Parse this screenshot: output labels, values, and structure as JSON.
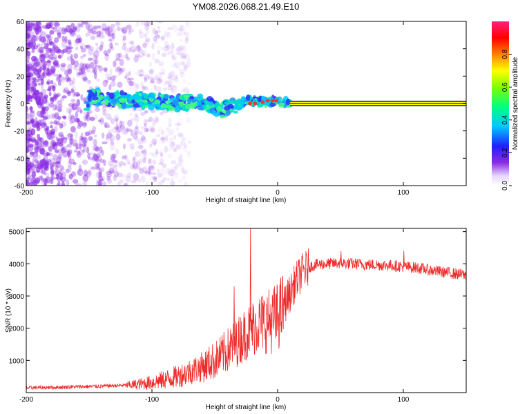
{
  "figure_title": "YM08.2026.068.21.49.E10",
  "colors": {
    "snr_line": "#ee2c2c",
    "spectrogram_noise": "#8a2be2",
    "frame": "#000000"
  },
  "chart_data": [
    {
      "type": "heatmap",
      "title": "",
      "xlabel": "Height of straight line (km)",
      "ylabel": "Frequency (Hz)",
      "xlim": [
        -200,
        150
      ],
      "ylim": [
        -60,
        60
      ],
      "xticks": [
        -200,
        -100,
        0,
        100
      ],
      "yticks": [
        -60,
        -40,
        -20,
        0,
        20,
        40,
        60
      ],
      "colorbar": {
        "label": "Normalized spectral amplitude",
        "range": [
          0,
          1
        ],
        "ticks": [
          "0.0",
          "0.2",
          "0.4",
          "0.6",
          "0.8"
        ],
        "colormap": "rainbow (violet-blue-cyan-green-yellow-red-magenta)"
      },
      "features": [
        {
          "name": "broadband noise",
          "x_range": [
            -200,
            -100
          ],
          "y_range": [
            -60,
            60
          ],
          "amplitude": 0.05
        },
        {
          "name": "signal trace",
          "points": [
            [
              -150,
              5
            ],
            [
              -125,
              3
            ],
            [
              -100,
              2
            ],
            [
              -80,
              0
            ],
            [
              -60,
              2
            ],
            [
              -45,
              -5
            ],
            [
              -35,
              -2
            ],
            [
              -25,
              2
            ],
            [
              -10,
              1
            ],
            [
              0,
              2
            ],
            [
              10,
              0
            ],
            [
              150,
              0
            ]
          ]
        },
        {
          "name": "steady carrier",
          "x_range": [
            10,
            150
          ],
          "frequency": 0,
          "amplitude": 1.0
        }
      ]
    },
    {
      "type": "line",
      "title": "",
      "xlabel": "Height of straight line (km)",
      "ylabel": "SNR (10 * v/v)",
      "xlim": [
        -200,
        150
      ],
      "ylim": [
        0,
        5100
      ],
      "xticks": [
        -200,
        -100,
        0,
        100
      ],
      "yticks": [
        1000,
        2000,
        3000,
        4000,
        5000
      ],
      "series": [
        {
          "name": "SNR",
          "trend": [
            [
              -200,
              150
            ],
            [
              -180,
              160
            ],
            [
              -160,
              180
            ],
            [
              -140,
              200
            ],
            [
              -120,
              230
            ],
            [
              -110,
              260
            ],
            [
              -100,
              320
            ],
            [
              -90,
              400
            ],
            [
              -80,
              500
            ],
            [
              -70,
              650
            ],
            [
              -60,
              800
            ],
            [
              -50,
              1000
            ],
            [
              -40,
              1300
            ],
            [
              -30,
              1650
            ],
            [
              -25,
              1850
            ],
            [
              -20,
              2000
            ],
            [
              -15,
              2150
            ],
            [
              -10,
              2200
            ],
            [
              -5,
              2250
            ],
            [
              0,
              2350
            ],
            [
              5,
              2700
            ],
            [
              10,
              3100
            ],
            [
              15,
              3500
            ],
            [
              20,
              3750
            ],
            [
              25,
              3900
            ],
            [
              30,
              3970
            ],
            [
              40,
              4000
            ],
            [
              50,
              4020
            ],
            [
              70,
              3980
            ],
            [
              90,
              3950
            ],
            [
              110,
              3880
            ],
            [
              130,
              3750
            ],
            [
              150,
              3650
            ]
          ],
          "spikes": [
            [
              -22,
              5100
            ],
            [
              -35,
              3300
            ],
            [
              5,
              3300
            ],
            [
              50,
              4400
            ],
            [
              100,
              4400
            ]
          ]
        }
      ]
    }
  ]
}
